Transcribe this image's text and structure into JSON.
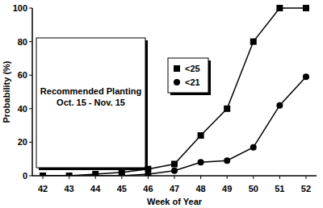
{
  "chart_data": {
    "type": "line",
    "x_label": "Week of Year",
    "y_label": "Probability (%)",
    "annotation": [
      "Recommended Planting",
      "Oct. 15 - Nov. 15"
    ],
    "x": [
      42,
      43,
      44,
      45,
      46,
      47,
      48,
      49,
      50,
      51,
      52
    ],
    "series": [
      {
        "name": "<25",
        "color": "#000000",
        "marker": "square",
        "line_style": "solid",
        "values": [
          0,
          0,
          1,
          2,
          4,
          7,
          24,
          40,
          80,
          100,
          100
        ]
      },
      {
        "name": "<21",
        "color": "#000000",
        "marker": "circle",
        "line_style": "solid",
        "values": [
          0,
          0,
          0,
          0,
          1,
          3,
          8,
          9,
          17,
          42,
          59
        ]
      }
    ],
    "xlim": [
      41.6,
      52.4
    ],
    "xticks": [
      42,
      43,
      44,
      45,
      46,
      47,
      48,
      49,
      50,
      51,
      52
    ],
    "ylim": [
      0,
      100
    ],
    "yticks": [
      0,
      20,
      40,
      60,
      80,
      100
    ],
    "grid": false,
    "legend": "top"
  }
}
